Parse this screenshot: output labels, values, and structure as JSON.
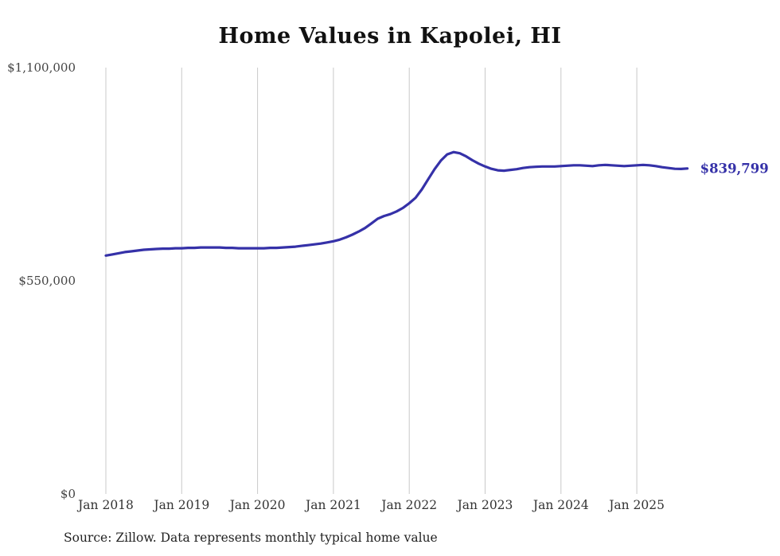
{
  "colors": {
    "line": "#3531a8",
    "grid": "#c9c9c9",
    "axis_text": "#444444",
    "title_text": "#111111",
    "end_label": "#3531a8"
  },
  "chart_data": {
    "type": "line",
    "title": "Home Values in Kapolei, HI",
    "xlabel": "",
    "ylabel": "",
    "ylim": [
      0,
      1100000
    ],
    "grid": "vertical",
    "legend": "none",
    "source": "Source: Zillow. Data represents monthly typical home value",
    "final_value": 839799,
    "final_value_label": "$839,799",
    "y_tick_labels": [
      "$0",
      "$550,000",
      "$1,100,000"
    ],
    "x_tick_labels": [
      "Jan 2018",
      "Jan 2019",
      "Jan 2020",
      "Jan 2021",
      "Jan 2022",
      "Jan 2023",
      "Jan 2024",
      "Jan 2025"
    ],
    "x": [
      "2018-01",
      "2018-02",
      "2018-03",
      "2018-04",
      "2018-05",
      "2018-06",
      "2018-07",
      "2018-08",
      "2018-09",
      "2018-10",
      "2018-11",
      "2018-12",
      "2019-01",
      "2019-02",
      "2019-03",
      "2019-04",
      "2019-05",
      "2019-06",
      "2019-07",
      "2019-08",
      "2019-09",
      "2019-10",
      "2019-11",
      "2019-12",
      "2020-01",
      "2020-02",
      "2020-03",
      "2020-04",
      "2020-05",
      "2020-06",
      "2020-07",
      "2020-08",
      "2020-09",
      "2020-10",
      "2020-11",
      "2020-12",
      "2021-01",
      "2021-02",
      "2021-03",
      "2021-04",
      "2021-05",
      "2021-06",
      "2021-07",
      "2021-08",
      "2021-09",
      "2021-10",
      "2021-11",
      "2021-12",
      "2022-01",
      "2022-02",
      "2022-03",
      "2022-04",
      "2022-05",
      "2022-06",
      "2022-07",
      "2022-08",
      "2022-09",
      "2022-10",
      "2022-11",
      "2022-12",
      "2023-01",
      "2023-02",
      "2023-03",
      "2023-04",
      "2023-05",
      "2023-06",
      "2023-07",
      "2023-08",
      "2023-09",
      "2023-10",
      "2023-11",
      "2023-12",
      "2024-01",
      "2024-02",
      "2024-03",
      "2024-04",
      "2024-05",
      "2024-06",
      "2024-07",
      "2024-08",
      "2024-09",
      "2024-10",
      "2024-11",
      "2024-12",
      "2025-01",
      "2025-02",
      "2025-03",
      "2025-04",
      "2025-05",
      "2025-06",
      "2025-07",
      "2025-08",
      "2025-09"
    ],
    "values": [
      615000,
      618000,
      621000,
      624000,
      626000,
      628000,
      630000,
      631000,
      632000,
      633000,
      633000,
      634000,
      634000,
      635000,
      635000,
      636000,
      636000,
      636000,
      636000,
      635000,
      635000,
      634000,
      634000,
      634000,
      634000,
      634000,
      635000,
      635000,
      636000,
      637000,
      638000,
      640000,
      642000,
      644000,
      646000,
      649000,
      652000,
      656000,
      662000,
      669000,
      677000,
      686000,
      698000,
      710000,
      717000,
      722000,
      729000,
      738000,
      750000,
      764000,
      786000,
      812000,
      838000,
      860000,
      876000,
      882000,
      879000,
      871000,
      861000,
      852000,
      845000,
      839000,
      835000,
      834000,
      836000,
      838000,
      841000,
      843000,
      844000,
      845000,
      845000,
      845000,
      846000,
      847000,
      848000,
      848000,
      847000,
      846000,
      848000,
      849000,
      848000,
      847000,
      846000,
      847000,
      848000,
      849000,
      848000,
      846000,
      843000,
      841000,
      839000,
      838500,
      839799
    ]
  }
}
